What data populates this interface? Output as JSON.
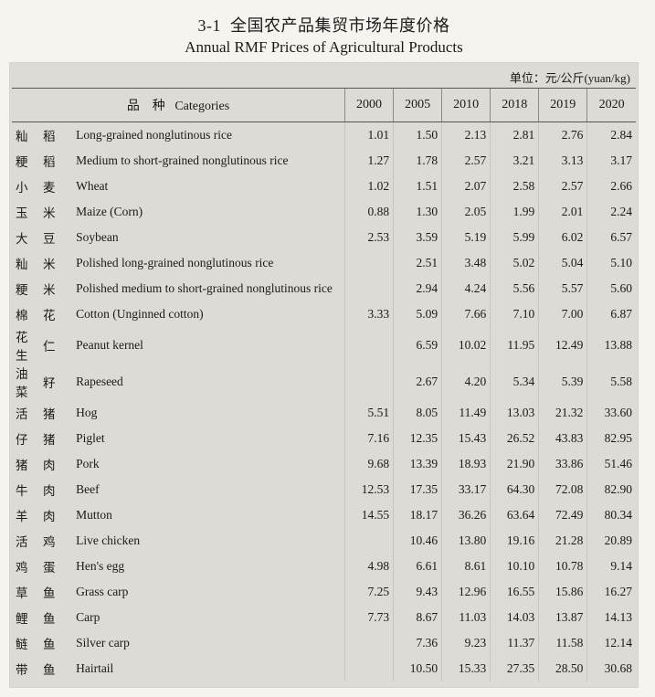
{
  "title": {
    "number": "3-1",
    "cn": "全国农产品集贸市场年度价格",
    "en": "Annual RMF Prices of Agricultural Products"
  },
  "unit_label": "单位：元/公斤(yuan/kg)",
  "header": {
    "categories_cn": "品　种",
    "categories_en": "Categories",
    "years": [
      "2000",
      "2005",
      "2010",
      "2018",
      "2019",
      "2020"
    ]
  },
  "colors": {
    "page_bg": "#f7f4f0",
    "panel_bg": "#dedbd6",
    "rule": "#555555",
    "vline": "#8a8a88",
    "text": "#1a1a1a"
  },
  "fonts": {
    "family": "Times New Roman / SimSun serif",
    "title_pt": 18,
    "body_pt": 13.5
  },
  "rows": [
    {
      "cn1": "籼",
      "cn2": "稻",
      "en": "Long-grained nonglutinous rice",
      "v": [
        "1.01",
        "1.50",
        "2.13",
        "2.81",
        "2.76",
        "2.84"
      ]
    },
    {
      "cn1": "粳",
      "cn2": "稻",
      "en": "Medium to short-grained nonglutinous rice",
      "v": [
        "1.27",
        "1.78",
        "2.57",
        "3.21",
        "3.13",
        "3.17"
      ]
    },
    {
      "cn1": "小",
      "cn2": "麦",
      "en": "Wheat",
      "v": [
        "1.02",
        "1.51",
        "2.07",
        "2.58",
        "2.57",
        "2.66"
      ]
    },
    {
      "cn1": "玉",
      "cn2": "米",
      "en": "Maize (Corn)",
      "v": [
        "0.88",
        "1.30",
        "2.05",
        "1.99",
        "2.01",
        "2.24"
      ]
    },
    {
      "cn1": "大",
      "cn2": "豆",
      "en": "Soybean",
      "v": [
        "2.53",
        "3.59",
        "5.19",
        "5.99",
        "6.02",
        "6.57"
      ]
    },
    {
      "cn1": "籼",
      "cn2": "米",
      "en": "Polished long-grained nonglutinous rice",
      "v": [
        "",
        "2.51",
        "3.48",
        "5.02",
        "5.04",
        "5.10"
      ]
    },
    {
      "cn1": "粳",
      "cn2": "米",
      "en": "Polished medium to short-grained nonglutinous rice",
      "v": [
        "",
        "2.94",
        "4.24",
        "5.56",
        "5.57",
        "5.60"
      ]
    },
    {
      "cn1": "棉",
      "cn2": "花",
      "en": "Cotton (Unginned cotton)",
      "v": [
        "3.33",
        "5.09",
        "7.66",
        "7.10",
        "7.00",
        "6.87"
      ]
    },
    {
      "cn1": "花 生",
      "cn2": "仁",
      "en": "Peanut kernel",
      "v": [
        "",
        "6.59",
        "10.02",
        "11.95",
        "12.49",
        "13.88"
      ]
    },
    {
      "cn1": "油 菜",
      "cn2": "籽",
      "en": "Rapeseed",
      "v": [
        "",
        "2.67",
        "4.20",
        "5.34",
        "5.39",
        "5.58"
      ]
    },
    {
      "cn1": "活",
      "cn2": "猪",
      "en": "Hog",
      "v": [
        "5.51",
        "8.05",
        "11.49",
        "13.03",
        "21.32",
        "33.60"
      ]
    },
    {
      "cn1": "仔",
      "cn2": "猪",
      "en": "Piglet",
      "v": [
        "7.16",
        "12.35",
        "15.43",
        "26.52",
        "43.83",
        "82.95"
      ]
    },
    {
      "cn1": "猪",
      "cn2": "肉",
      "en": "Pork",
      "v": [
        "9.68",
        "13.39",
        "18.93",
        "21.90",
        "33.86",
        "51.46"
      ]
    },
    {
      "cn1": "牛",
      "cn2": "肉",
      "en": "Beef",
      "v": [
        "12.53",
        "17.35",
        "33.17",
        "64.30",
        "72.08",
        "82.90"
      ]
    },
    {
      "cn1": "羊",
      "cn2": "肉",
      "en": "Mutton",
      "v": [
        "14.55",
        "18.17",
        "36.26",
        "63.64",
        "72.49",
        "80.34"
      ]
    },
    {
      "cn1": "活",
      "cn2": "鸡",
      "en": "Live chicken",
      "v": [
        "",
        "10.46",
        "13.80",
        "19.16",
        "21.28",
        "20.89"
      ]
    },
    {
      "cn1": "鸡",
      "cn2": "蛋",
      "en": "Hen's egg",
      "v": [
        "4.98",
        "6.61",
        "8.61",
        "10.10",
        "10.78",
        "9.14"
      ]
    },
    {
      "cn1": "草",
      "cn2": "鱼",
      "en": "Grass carp",
      "v": [
        "7.25",
        "9.43",
        "12.96",
        "16.55",
        "15.86",
        "16.27"
      ]
    },
    {
      "cn1": "鲤",
      "cn2": "鱼",
      "en": "Carp",
      "v": [
        "7.73",
        "8.67",
        "11.03",
        "14.03",
        "13.87",
        "14.13"
      ]
    },
    {
      "cn1": "鲢",
      "cn2": "鱼",
      "en": "Silver carp",
      "v": [
        "",
        "7.36",
        "9.23",
        "11.37",
        "11.58",
        "12.14"
      ]
    },
    {
      "cn1": "带",
      "cn2": "鱼",
      "en": "Hairtail",
      "v": [
        "",
        "10.50",
        "15.33",
        "27.35",
        "28.50",
        "30.68"
      ]
    }
  ]
}
